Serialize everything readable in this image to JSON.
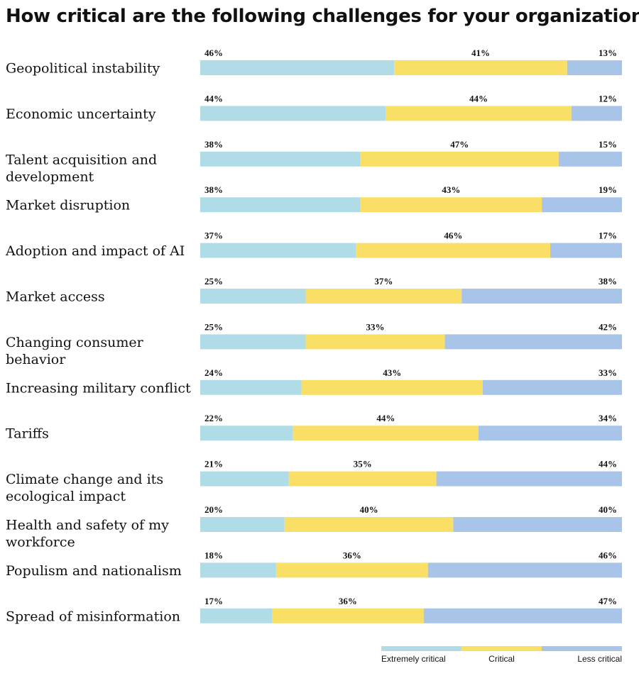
{
  "chart_data": {
    "type": "bar",
    "orientation": "horizontal",
    "stacked": true,
    "title": "How critical are the following challenges for your organization?",
    "categories": [
      "Geopolitical instability",
      "Economic uncertainty",
      "Talent acquisition and development",
      "Market disruption",
      "Adoption and impact of AI",
      "Market access",
      "Changing consumer behavior",
      "Increasing military conflict",
      "Tariffs",
      "Climate change and its ecological impact",
      "Health and safety of my workforce",
      "Populism and nationalism",
      "Spread of misinformation"
    ],
    "series": [
      {
        "name": "Extremely critical",
        "color": "#b0dce8",
        "values": [
          46,
          44,
          38,
          38,
          37,
          25,
          25,
          24,
          22,
          21,
          20,
          18,
          17
        ]
      },
      {
        "name": "Critical",
        "color": "#fadf67",
        "values": [
          41,
          44,
          47,
          43,
          46,
          37,
          33,
          43,
          44,
          35,
          40,
          36,
          36
        ]
      },
      {
        "name": "Less critical",
        "color": "#a8c4e9",
        "values": [
          13,
          12,
          15,
          19,
          17,
          38,
          42,
          33,
          34,
          44,
          40,
          46,
          47
        ]
      }
    ],
    "value_suffix": "%",
    "xlim": [
      0,
      100
    ],
    "legend_position": "bottom-right",
    "grid": false
  }
}
